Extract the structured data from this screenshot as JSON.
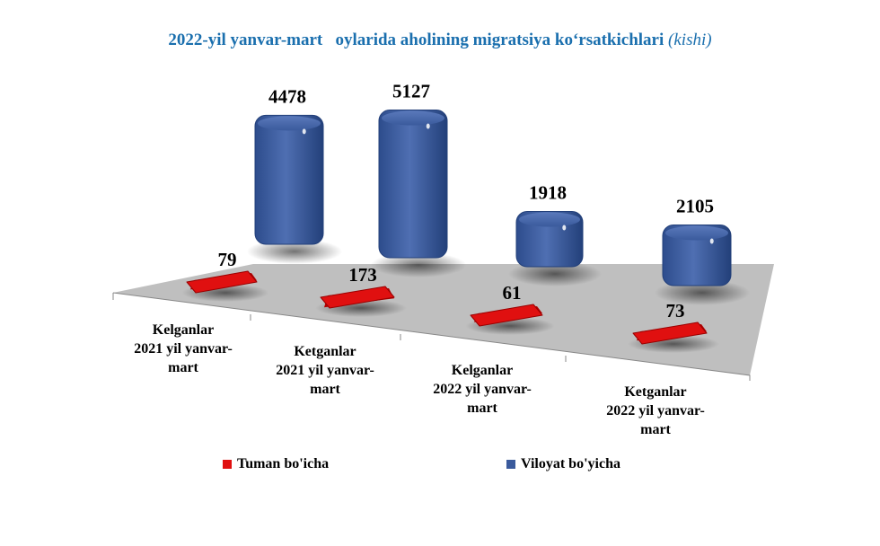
{
  "chart_data": {
    "type": "bar",
    "title": "2022-yil yanvar-mart   oylarida aholining migratsiya ko‘rsatkichlari",
    "title_unit": "(kishi)",
    "categories": [
      [
        "Kelganlar",
        "2021 yil yanvar-",
        "mart"
      ],
      [
        "Ketganlar",
        "2021 yil yanvar-",
        "mart"
      ],
      [
        "Kelganlar",
        "2022 yil yanvar-",
        "mart"
      ],
      [
        "Ketganlar",
        "2022 yil yanvar-",
        "mart"
      ]
    ],
    "series": [
      {
        "name": "Tuman bo'icha",
        "values": [
          79,
          173,
          61,
          73
        ],
        "color": "#e01010"
      },
      {
        "name": "Viloyat bo'yicha",
        "values": [
          4478,
          5127,
          1918,
          2105
        ],
        "color": "#3a5a9c"
      }
    ],
    "floor_color": "#bfbfbf",
    "legend_position": "bottom"
  }
}
